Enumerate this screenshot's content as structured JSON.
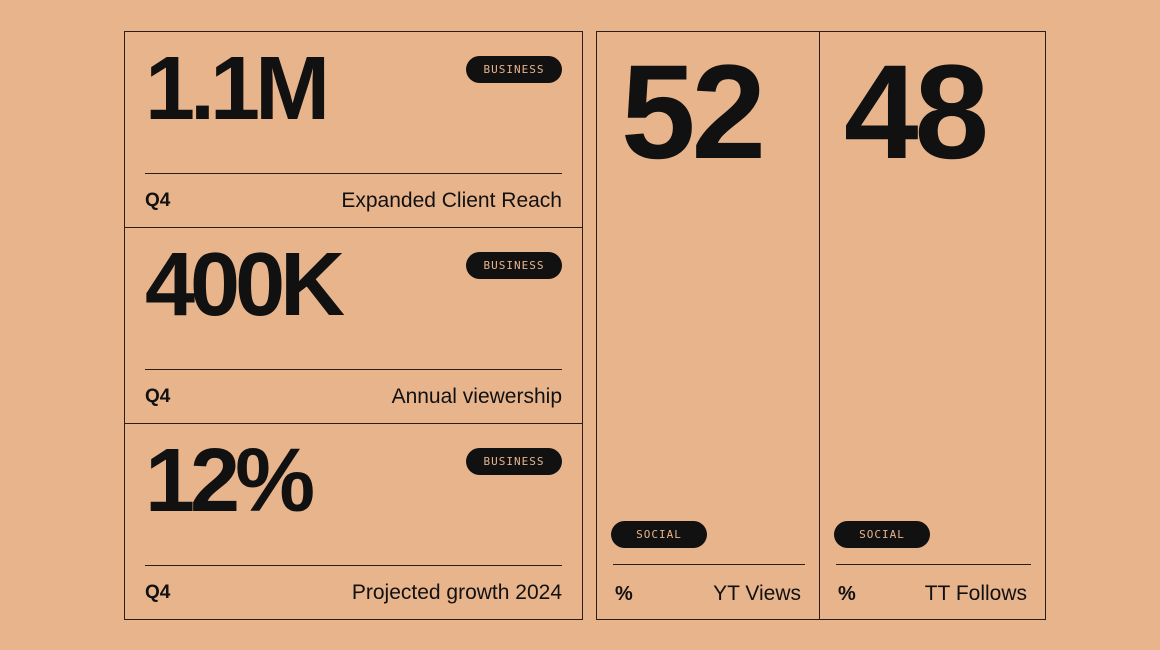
{
  "business_stats": [
    {
      "value": "1.1M",
      "badge": "BUSINESS",
      "period": "Q4",
      "label": "Expanded Client Reach"
    },
    {
      "value": "400K",
      "badge": "BUSINESS",
      "period": "Q4",
      "label": "Annual viewership"
    },
    {
      "value": "12%",
      "badge": "BUSINESS",
      "period": "Q4",
      "label": "Projected growth 2024"
    }
  ],
  "social_stats": [
    {
      "value": "52",
      "badge": "SOCIAL",
      "unit": "%",
      "label": "YT Views"
    },
    {
      "value": "48",
      "badge": "SOCIAL",
      "unit": "%",
      "label": "TT Follows"
    }
  ],
  "colors": {
    "background": "#e8b48c",
    "ink": "#111111",
    "rule": "#2b1e16"
  }
}
